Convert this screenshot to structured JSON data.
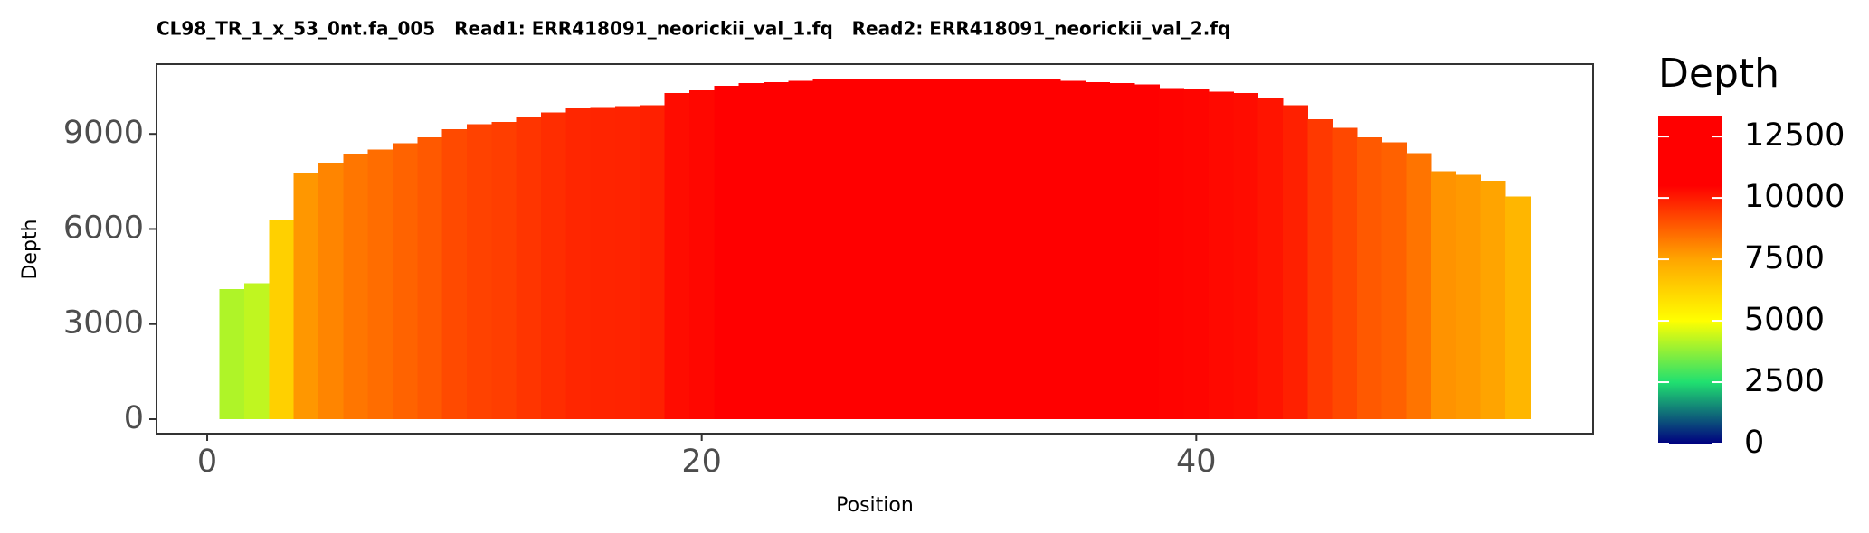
{
  "chart_data": {
    "type": "bar",
    "title": "CL98_TR_1_x_53_0nt.fa_005   Read1: ERR418091_neorickii_val_1.fq   Read2: ERR418091_neorickii_val_2.fq",
    "x_label": "Position",
    "y_label": "Depth",
    "x": [
      1,
      2,
      3,
      4,
      5,
      6,
      7,
      8,
      9,
      10,
      11,
      12,
      13,
      14,
      15,
      16,
      17,
      18,
      19,
      20,
      21,
      22,
      23,
      24,
      25,
      26,
      27,
      28,
      29,
      30,
      31,
      32,
      33,
      34,
      35,
      36,
      37,
      38,
      39,
      40,
      41,
      42,
      43,
      44,
      45,
      46,
      47,
      48,
      49,
      50,
      51,
      52,
      53
    ],
    "values": [
      4100,
      4290,
      6300,
      7750,
      8090,
      8350,
      8510,
      8700,
      8890,
      9150,
      9300,
      9380,
      9530,
      9680,
      9800,
      9840,
      9870,
      9910,
      10290,
      10370,
      10520,
      10600,
      10630,
      10670,
      10710,
      10750,
      10750,
      10750,
      10750,
      10750,
      10750,
      10750,
      10750,
      10710,
      10670,
      10630,
      10600,
      10560,
      10440,
      10410,
      10330,
      10290,
      10140,
      9910,
      9460,
      9190,
      8890,
      8740,
      8390,
      7820,
      7710,
      7520,
      7030
    ],
    "xlim": [
      -2.05,
      56.05
    ],
    "xticks": [
      0,
      20,
      40
    ],
    "ylim": [
      -456,
      11200
    ],
    "yticks": [
      0,
      3000,
      6000,
      9000
    ],
    "legend": {
      "title": "Depth",
      "lim": [
        0,
        13350
      ],
      "ticks": [
        0,
        2500,
        5000,
        7500,
        10000,
        12500
      ],
      "colorscale": [
        {
          "value": 0,
          "color": "#000080"
        },
        {
          "value": 2500,
          "color": "#20e070"
        },
        {
          "value": 5000,
          "color": "#ffff00"
        },
        {
          "value": 7500,
          "color": "#ffa500"
        },
        {
          "value": 10500,
          "color": "#ff0000"
        },
        {
          "value": 13350,
          "color": "#ff0000"
        }
      ]
    }
  }
}
